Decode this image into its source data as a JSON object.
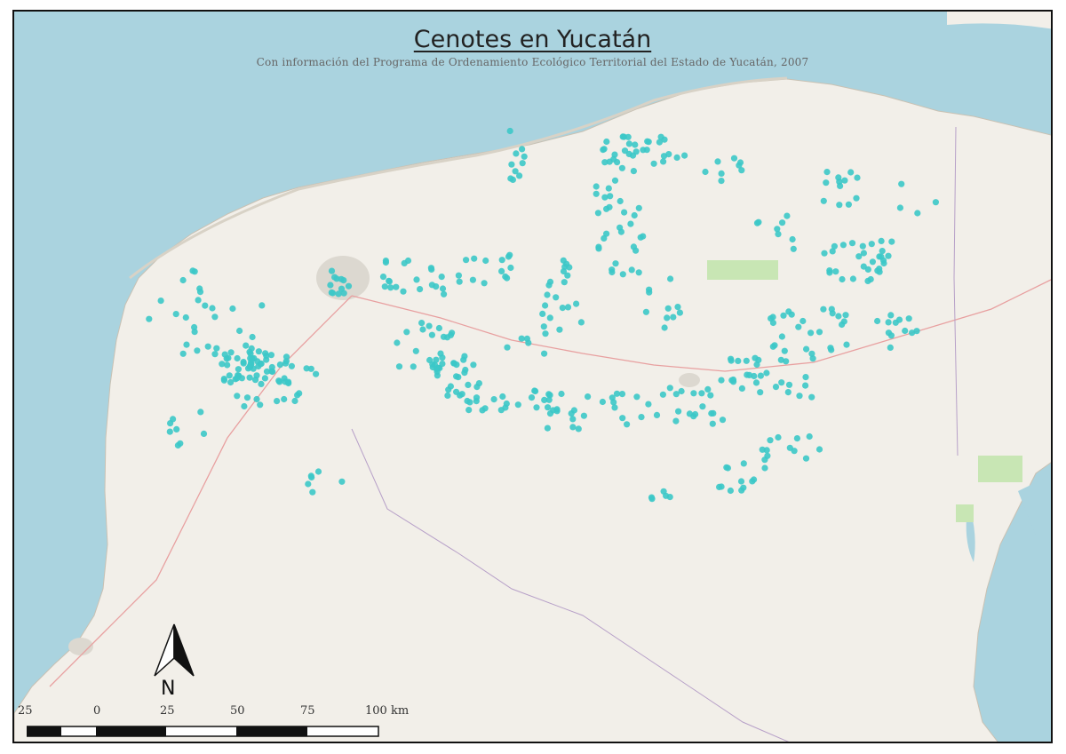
{
  "title": "Cenotes en Yucatán",
  "subtitle": "Con información del Programa de Ordenamiento Ecológico Territorial del Estado de Yucatán, 2007",
  "north_arrow": {
    "label": "N",
    "icon": "north-arrow-icon"
  },
  "scale": {
    "labels": [
      "25",
      "0",
      "25",
      "50",
      "75",
      "100 km"
    ]
  },
  "colors": {
    "sea": "#aad3df",
    "land": "#f2efe9",
    "coast": "#e6e1d8",
    "cenote": "#3cc8c8",
    "urban": "#dcd8d0",
    "park": "#c8e6b4"
  }
}
